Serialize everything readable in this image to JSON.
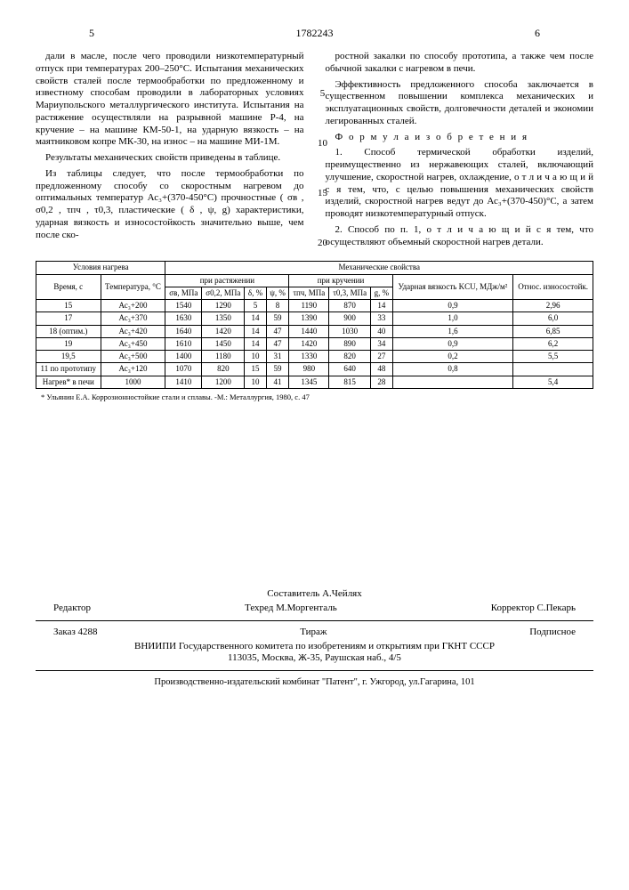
{
  "header": {
    "leftPage": "5",
    "docNumber": "1782243",
    "rightPage": "6"
  },
  "leftCol": {
    "p1": "дали в масле, после чего проводили низкотемпературный отпуск при температурах 200–250°С. Испытания механических свойств сталей после термообработки по предложенному и известному способам проводили в лабораторных условиях Мариупольского металлургического института. Испытания на растяжение осуществляли на разрывной машине Р-4, на кручение – на машине КМ-50-1, на ударную вязкость – на маятниковом копре МК-30, на износ – на машине МИ-1М.",
    "p2": "Результаты механических свойств приведены в таблице.",
    "p3": "Из таблицы следует, что после термообработки по предложенному способу со скоростным нагревом до оптимальных температур Ас₃+(370-450°С) прочностные ( σв , σ0,2 , τпч , τ0,3, пластические ( δ , ψ, g) характеристики, ударная вязкость и износостойкость значительно выше, чем после ско-"
  },
  "rightCol": {
    "p1": "ростной закалки по способу прототипа, а также чем после обычной закалки с нагревом в печи.",
    "p2": "Эффективность предложенного способа заключается в существенном повышении комплекса механических и эксплуатационных свойств, долговечности деталей и экономии легированных сталей.",
    "formulaTitle": "Ф о р м у л а  и з о б р е т е н и я",
    "p3": "1. Способ термической обработки изделий, преимущественно из нержавеющих сталей, включающий улучшение, скоростной нагрев, охлаждение, о т л и ч а ю щ и й с я тем, что, с целью повышения механических свойств изделий, скоростной нагрев ведут до Ас₃+(370-450)°С, а затем проводят низкотемпературный отпуск.",
    "p4": "2. Способ по п. 1, о т л и ч а ю щ и й с я тем, что осуществляют объемный скоростной нагрев детали."
  },
  "lineNumbers": [
    "5",
    "10",
    "15",
    "20"
  ],
  "table": {
    "head": {
      "g1": "Условия нагрева",
      "g2": "Механические свойства",
      "sub1": "Время, с",
      "sub2": "Температура, °С",
      "sub3a": "при растяжении",
      "sub3b": "при кручении",
      "c1": "σв, МПа",
      "c2": "σ0,2, МПа",
      "c3": "δ, %",
      "c4": "ψ, %",
      "c5": "τпч, МПа",
      "c6": "τ0,3, МПа",
      "c7": "g, %",
      "c8": "Ударная вязкость KCU, МДж/м²",
      "c9": "Относ. износостойк."
    },
    "rows": [
      [
        "15",
        "Ас₃+200",
        "1540",
        "1290",
        "5",
        "8",
        "1190",
        "870",
        "14",
        "0,9",
        "2,96"
      ],
      [
        "17",
        "Ас₃+370",
        "1630",
        "1350",
        "14",
        "59",
        "1390",
        "900",
        "33",
        "1,0",
        "6,0"
      ],
      [
        "18 (оптим.)",
        "Ас₃+420",
        "1640",
        "1420",
        "14",
        "47",
        "1440",
        "1030",
        "40",
        "1,6",
        "6,85"
      ],
      [
        "19",
        "Ас₃+450",
        "1610",
        "1450",
        "14",
        "47",
        "1420",
        "890",
        "34",
        "0,9",
        "6,2"
      ],
      [
        "19,5",
        "Ас₃+500",
        "1400",
        "1180",
        "10",
        "31",
        "1330",
        "820",
        "27",
        "0,2",
        "5,5"
      ],
      [
        "11 по прототипу",
        "Ас₃+120",
        "1070",
        "820",
        "15",
        "59",
        "980",
        "640",
        "48",
        "0,8",
        ""
      ],
      [
        "Нагрев* в печи",
        "1000",
        "1410",
        "1200",
        "10",
        "41",
        "1345",
        "815",
        "28",
        "",
        "5,4"
      ]
    ],
    "footnote": "* Ульянин Е.А. Коррозионностойкие стали и сплавы. -М.: Металлургия, 1980, с. 47"
  },
  "credits": {
    "compiler": "Составитель А.Чейлях",
    "editorLabel": "Редактор",
    "techred": "Техред М.Моргенталь",
    "corrector": "Корректор С.Пекарь",
    "order": "Заказ 4288",
    "tirazh": "Тираж",
    "subscript": "Подписное",
    "org1": "ВНИИПИ Государственного комитета по изобретениям и открытиям при ГКНТ СССР",
    "org2": "113035, Москва, Ж-35, Раушская наб., 4/5",
    "pub": "Производственно-издательский комбинат \"Патент\", г. Ужгород, ул.Гагарина, 101"
  }
}
